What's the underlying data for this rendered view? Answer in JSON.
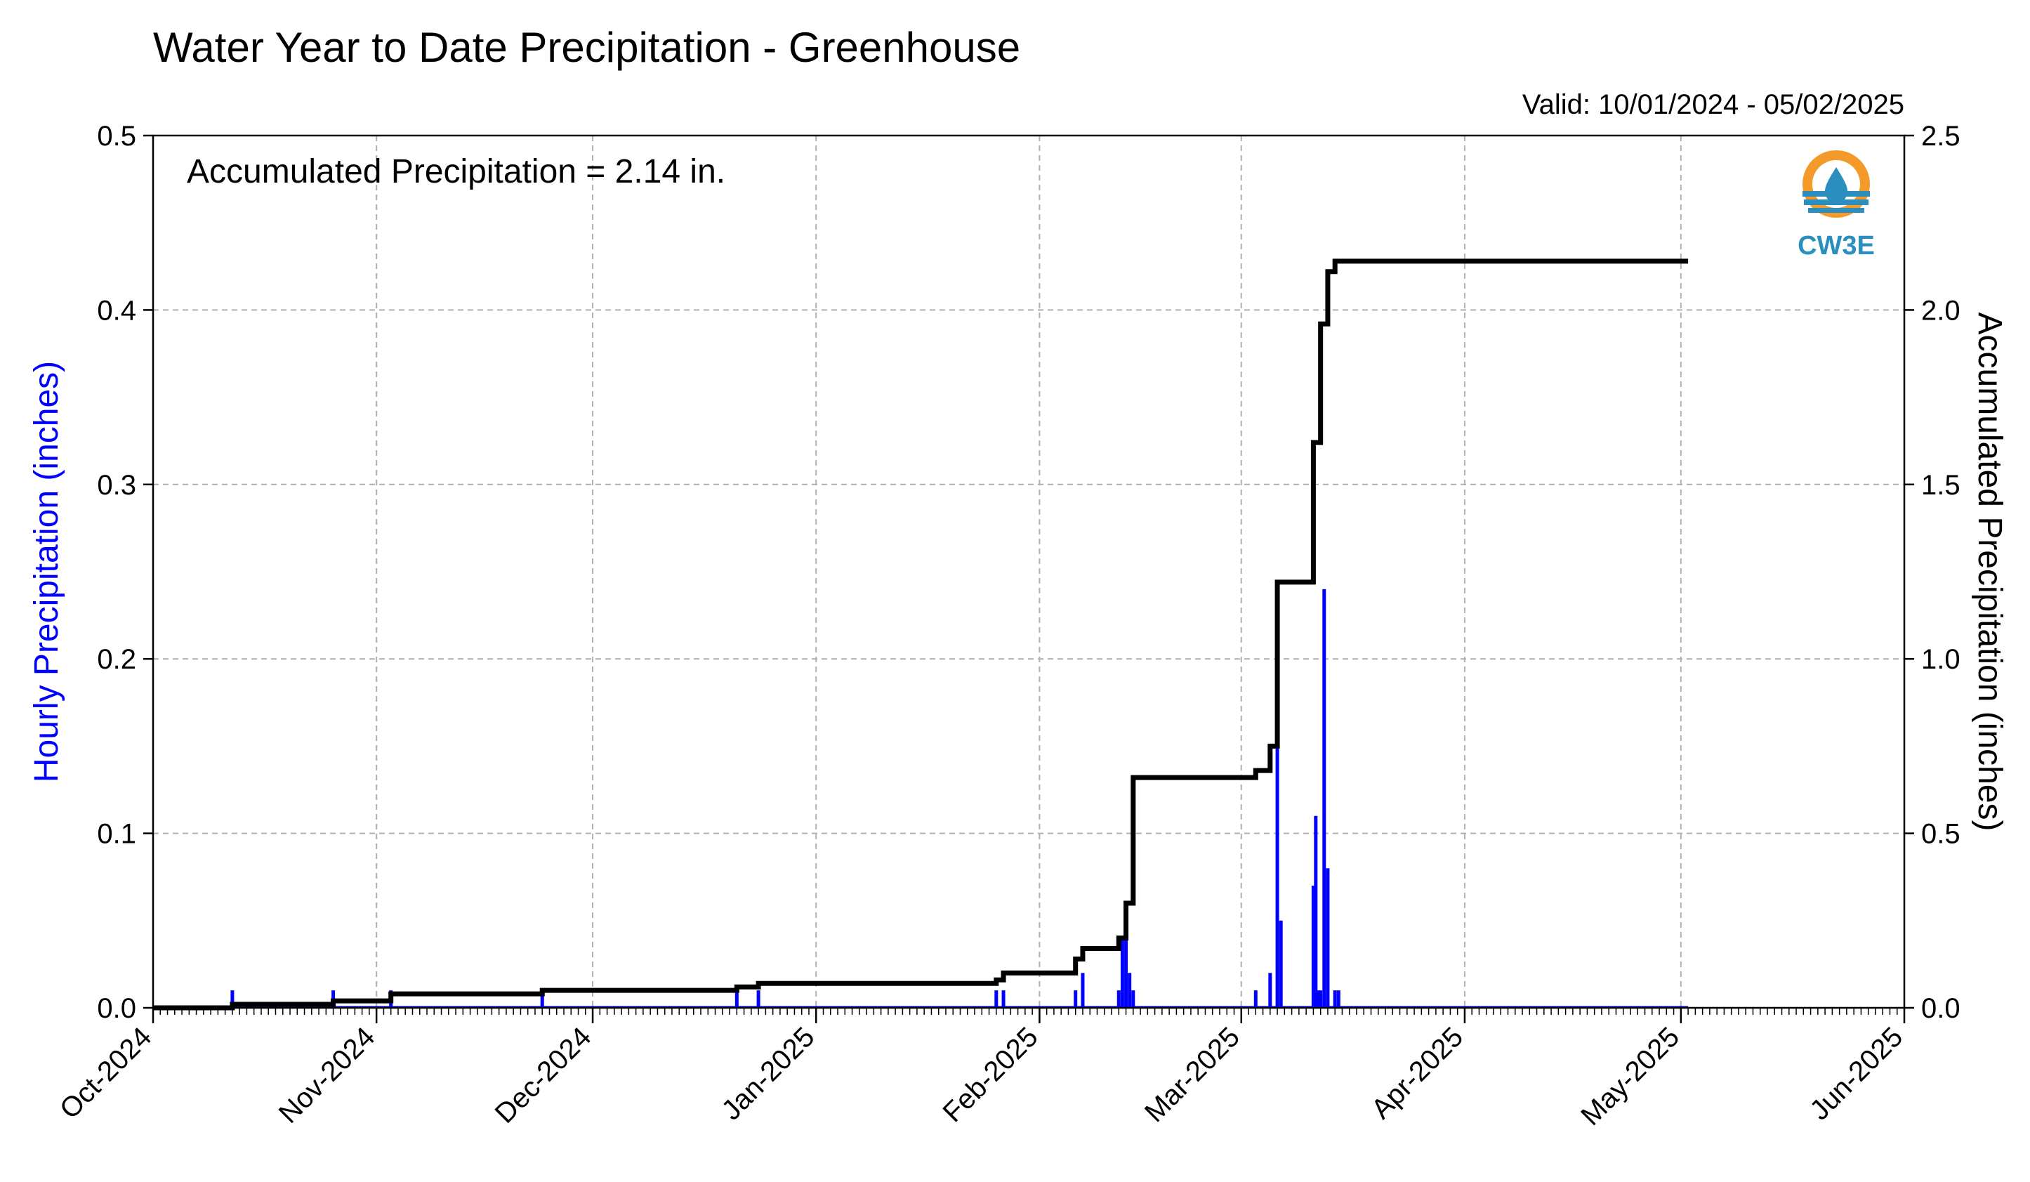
{
  "chart_data": {
    "type": "bar",
    "title": "Water Year to Date Precipitation - Greenhouse",
    "subtitle": "Valid: 10/01/2024 - 05/02/2025",
    "annotation": "Accumulated Precipitation = 2.14 in.",
    "logo_text": "CW3E",
    "xlabel": "",
    "ylabel_left": "Hourly Precipitation (inches)",
    "ylabel_right": "Accumulated Precipitation (inches)",
    "xlim": [
      "2024-10-01",
      "2025-06-01"
    ],
    "ylim_left": [
      0,
      0.5
    ],
    "ylim_right": [
      0,
      2.5
    ],
    "x_ticks": [
      "2024-10-01",
      "2024-11-01",
      "2024-12-01",
      "2025-01-01",
      "2025-02-01",
      "2025-03-01",
      "2025-04-01",
      "2025-05-01",
      "2025-06-01"
    ],
    "x_tick_labels": [
      "Oct-2024",
      "Nov-2024",
      "Dec-2024",
      "Jan-2025",
      "Feb-2025",
      "Mar-2025",
      "Apr-2025",
      "May-2025",
      "Jun-2025"
    ],
    "y_ticks_left": [
      "0.0",
      "0.1",
      "0.2",
      "0.3",
      "0.4",
      "0.5"
    ],
    "y_ticks_right": [
      "0.0",
      "0.5",
      "1.0",
      "1.5",
      "2.0",
      "2.5"
    ],
    "grid": true,
    "colors": {
      "hourly": "#0000ff",
      "accumulated": "#000000",
      "grid": "#b0b0b0",
      "ylabel_left": "#0000ff",
      "logo_orange": "#f39a2b",
      "logo_blue": "#2a8fbf"
    },
    "series": [
      {
        "name": "Hourly Precipitation (inches)",
        "axis": "left",
        "style": "bar",
        "x": [
          "2024-10-12",
          "2024-10-26",
          "2024-11-03",
          "2024-11-24",
          "2024-12-21",
          "2024-12-24",
          "2025-01-26",
          "2025-01-27",
          "2025-02-06",
          "2025-02-07",
          "2025-02-12",
          "2025-02-12T12",
          "2025-02-13",
          "2025-02-13T12",
          "2025-02-14",
          "2025-03-03",
          "2025-03-05",
          "2025-03-06",
          "2025-03-06T12",
          "2025-03-11",
          "2025-03-11T08",
          "2025-03-11T16",
          "2025-03-12",
          "2025-03-12T12",
          "2025-03-13",
          "2025-03-14",
          "2025-03-14T12"
        ],
        "values": [
          0.01,
          0.01,
          0.01,
          0.01,
          0.01,
          0.01,
          0.01,
          0.01,
          0.01,
          0.02,
          0.01,
          0.04,
          0.06,
          0.02,
          0.01,
          0.01,
          0.02,
          0.15,
          0.05,
          0.07,
          0.11,
          0.01,
          0.01,
          0.24,
          0.08,
          0.01,
          0.01
        ]
      },
      {
        "name": "Accumulated Precipitation (inches)",
        "axis": "right",
        "style": "step",
        "x": [
          "2024-10-01",
          "2024-10-12",
          "2024-10-26",
          "2024-11-03",
          "2024-11-24",
          "2024-12-21",
          "2024-12-24",
          "2025-01-26",
          "2025-01-27",
          "2025-02-06",
          "2025-02-07",
          "2025-02-12",
          "2025-02-13",
          "2025-02-14",
          "2025-03-03",
          "2025-03-05",
          "2025-03-06",
          "2025-03-11",
          "2025-03-12",
          "2025-03-13",
          "2025-03-14",
          "2025-05-02"
        ],
        "values": [
          0.0,
          0.01,
          0.02,
          0.04,
          0.05,
          0.06,
          0.07,
          0.08,
          0.1,
          0.14,
          0.17,
          0.2,
          0.3,
          0.66,
          0.68,
          0.75,
          1.22,
          1.62,
          1.96,
          2.11,
          2.14,
          2.14
        ]
      }
    ]
  }
}
